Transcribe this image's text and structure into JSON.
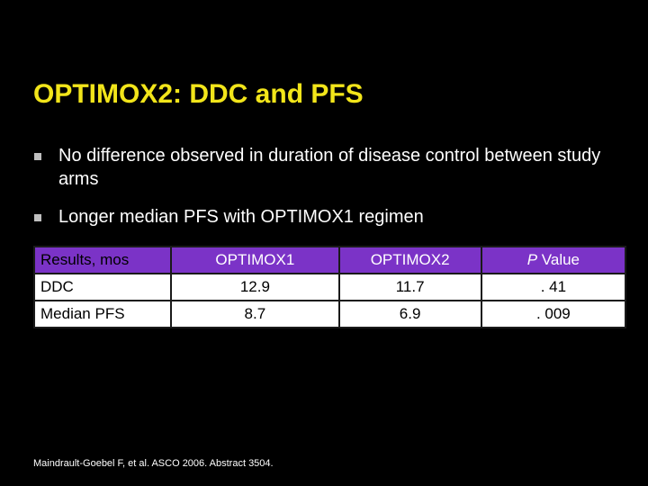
{
  "title": "OPTIMOX2: DDC and PFS",
  "bullets": [
    "No difference observed in duration of disease control between study arms",
    "Longer median PFS with OPTIMOX1 regimen"
  ],
  "table": {
    "headers": {
      "results": "Results, mos",
      "optimox1": "OPTIMOX1",
      "optimox2": "OPTIMOX2",
      "p_italic": "P",
      "p_rest": " Value"
    },
    "rows": [
      {
        "label": "DDC",
        "optimox1": "12.9",
        "optimox2": "11.7",
        "p": ". 41"
      },
      {
        "label": "Median PFS",
        "optimox1": "8.7",
        "optimox2": "6.9",
        "p": ". 009"
      }
    ]
  },
  "footnote": "Maindrault-Goebel F, et al. ASCO 2006. Abstract 3504.",
  "colors": {
    "background": "#000000",
    "title": "#f2e51a",
    "header_fill": "#7b33c7",
    "bullet_marker": "#bfbfbf"
  },
  "icons": {
    "bullet": "square-bullet-icon"
  }
}
